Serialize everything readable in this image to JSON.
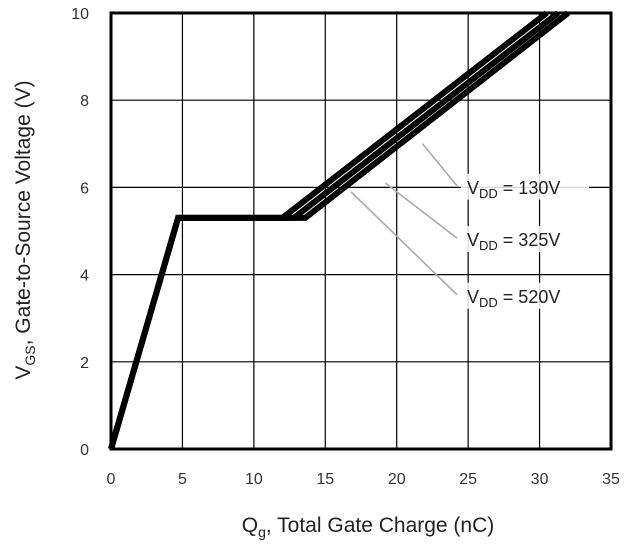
{
  "chart_data": {
    "type": "line",
    "xlabel": "Qg, Total Gate Charge (nC)",
    "xlabel_main": "Q",
    "xlabel_sub": "g",
    "xlabel_rest": ", Total Gate Charge (nC)",
    "ylabel": "VGS, Gate-to-Source Voltage (V)",
    "ylabel_main": "V",
    "ylabel_sub": "GS",
    "ylabel_rest": ", Gate-to-Source Voltage (V)",
    "xlim": [
      0,
      35
    ],
    "ylim": [
      0,
      10
    ],
    "xticks": [
      0,
      5,
      10,
      15,
      20,
      25,
      30,
      35
    ],
    "yticks": [
      0,
      2,
      4,
      6,
      8,
      10
    ],
    "grid": true,
    "series": [
      {
        "name": "VDD = 130V",
        "label_main": "V",
        "label_sub": "DD",
        "label_rest": " = 130V",
        "points": [
          [
            0,
            0
          ],
          [
            4.7,
            5.3
          ],
          [
            12.0,
            5.3
          ],
          [
            30.5,
            10.0
          ]
        ]
      },
      {
        "name": "VDD = 325V",
        "label_main": "V",
        "label_sub": "DD",
        "label_rest": " = 325V",
        "points": [
          [
            0,
            0
          ],
          [
            4.7,
            5.3
          ],
          [
            12.8,
            5.3
          ],
          [
            31.3,
            10.0
          ]
        ]
      },
      {
        "name": "VDD = 520V",
        "label_main": "V",
        "label_sub": "DD",
        "label_rest": " = 520V",
        "points": [
          [
            0,
            0
          ],
          [
            4.7,
            5.3
          ],
          [
            13.6,
            5.3
          ],
          [
            32.0,
            10.0
          ]
        ]
      }
    ],
    "annotations": [
      {
        "series": 0,
        "text_x": 24.5,
        "text_y": 5.9,
        "arrow_to": [
          21.8,
          7.0
        ]
      },
      {
        "series": 1,
        "text_x": 24.5,
        "text_y": 4.7,
        "arrow_to": [
          19.2,
          6.1
        ]
      },
      {
        "series": 2,
        "text_x": 24.5,
        "text_y": 3.4,
        "arrow_to": [
          16.8,
          5.9
        ]
      }
    ],
    "colors": {
      "line": "#000000",
      "grid": "#000000",
      "annotation_line": "#aaaaaa"
    }
  }
}
